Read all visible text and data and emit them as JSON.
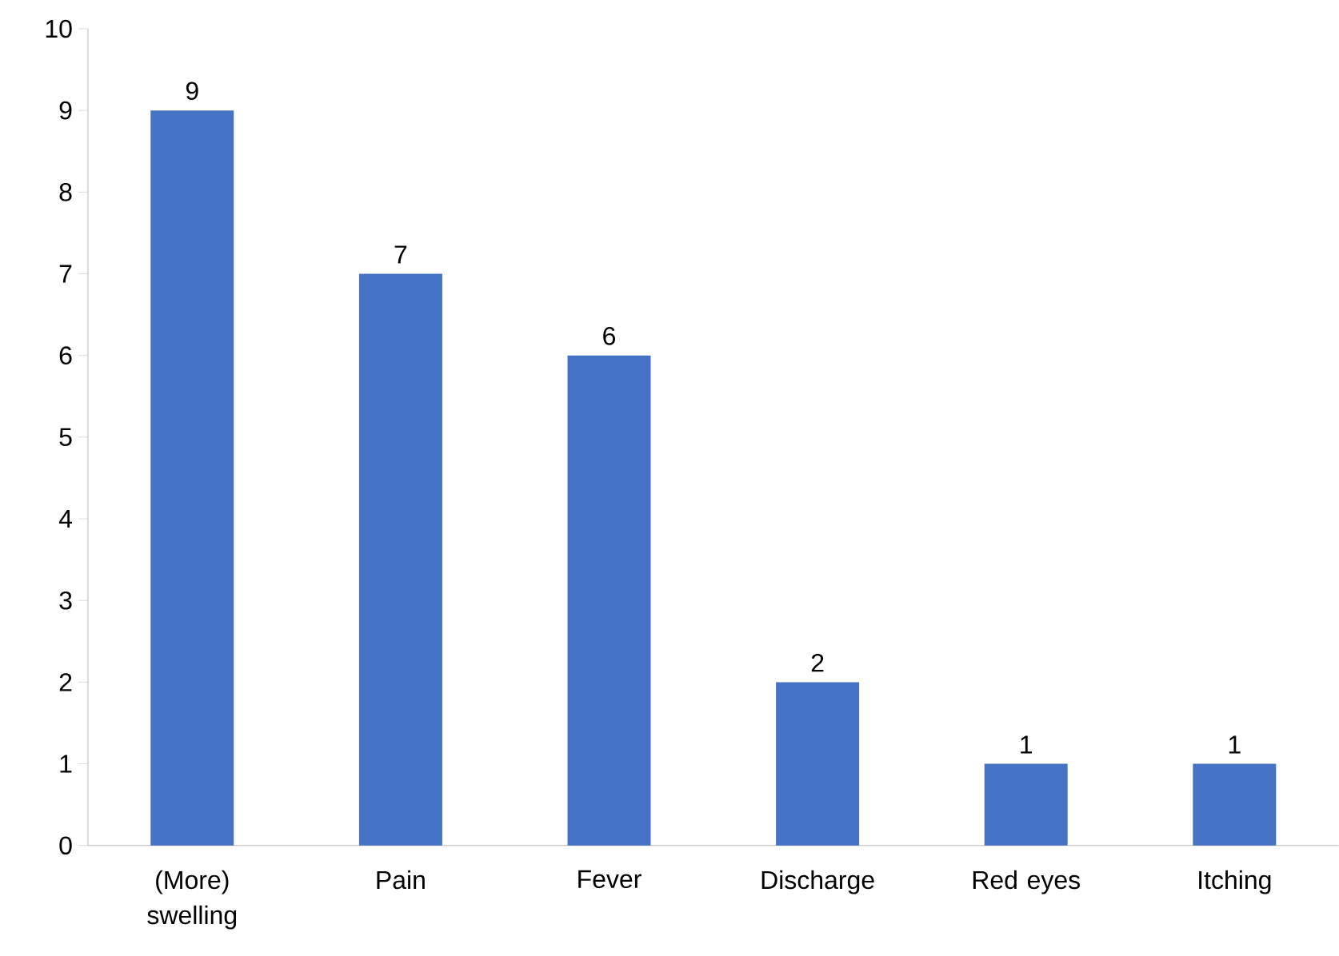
{
  "chart_data": {
    "type": "bar",
    "categories": [
      "(More) swelling",
      "Pain",
      "Fever",
      "Discharge",
      "Red eyes",
      "Itching"
    ],
    "values": [
      9,
      7,
      6,
      2,
      1,
      1
    ],
    "color": "#4472c4",
    "ylim": [
      0,
      10
    ],
    "yticks": [
      0,
      1,
      2,
      3,
      4,
      5,
      6,
      7,
      8,
      9,
      10
    ],
    "grid": false,
    "data_labels": true
  }
}
